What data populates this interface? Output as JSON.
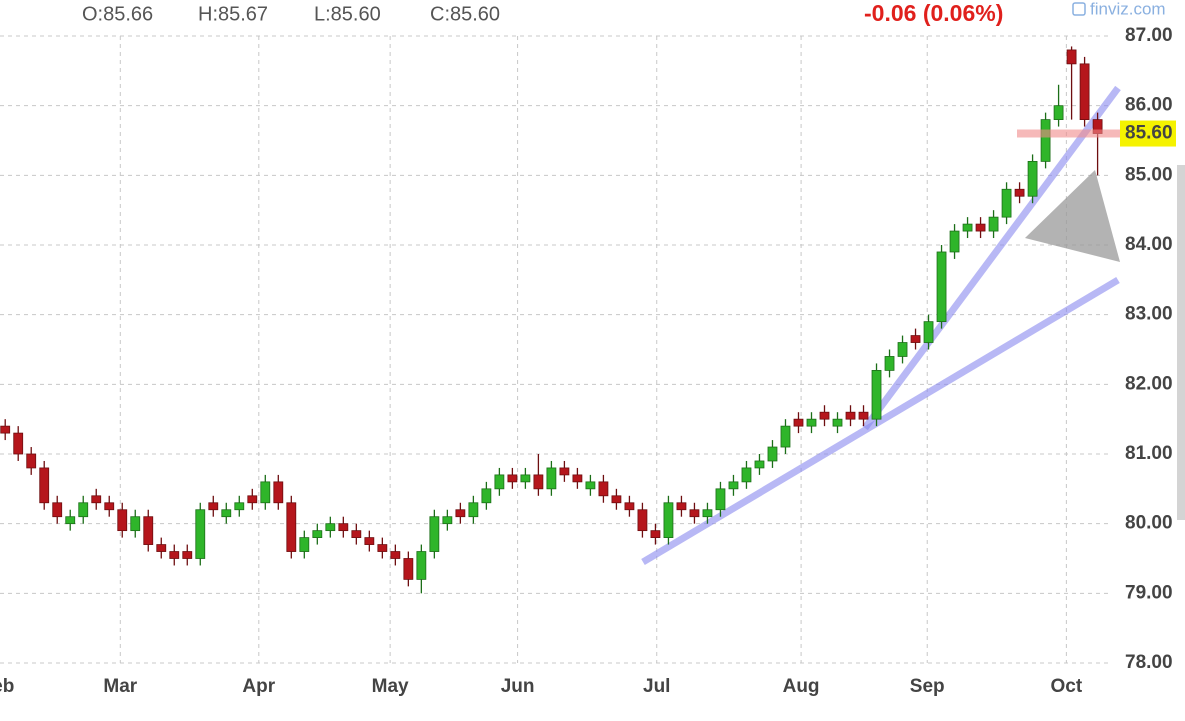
{
  "header": {
    "ohlc": [
      "O:85.66",
      "H:85.67",
      "L:85.60",
      "C:85.60"
    ],
    "change": "-0.06 (0.06%)",
    "brand": "finviz.com"
  },
  "chart_data": {
    "type": "candlestick",
    "open": [
      81.4,
      81.3,
      81.0,
      80.8,
      80.3,
      80.0,
      80.1,
      80.4,
      80.3,
      80.2,
      79.9,
      80.1,
      79.7,
      79.6,
      79.6,
      79.5,
      80.3,
      80.1,
      80.2,
      80.4,
      80.3,
      80.6,
      80.3,
      79.6,
      79.8,
      79.9,
      80.0,
      79.9,
      79.8,
      79.7,
      79.6,
      79.5,
      79.2,
      79.6,
      80.0,
      80.2,
      80.1,
      80.3,
      80.5,
      80.7,
      80.6,
      80.7,
      80.5,
      80.8,
      80.7,
      80.5,
      80.6,
      80.4,
      80.3,
      80.2,
      79.9,
      79.8,
      80.3,
      80.2,
      80.1,
      80.2,
      80.5,
      80.6,
      80.8,
      80.9,
      81.1,
      81.5,
      81.4,
      81.6,
      81.4,
      81.6,
      81.6,
      81.5,
      82.2,
      82.4,
      82.7,
      82.6,
      82.9,
      83.9,
      84.2,
      84.3,
      84.2,
      84.4,
      84.8,
      84.7,
      85.2,
      85.8,
      86.8,
      86.6,
      85.8
    ],
    "high": [
      81.5,
      81.4,
      81.1,
      80.9,
      80.4,
      80.2,
      80.4,
      80.5,
      80.4,
      80.3,
      80.2,
      80.2,
      79.8,
      79.7,
      79.7,
      80.3,
      80.4,
      80.3,
      80.4,
      80.5,
      80.7,
      80.7,
      80.4,
      79.9,
      80.0,
      80.1,
      80.1,
      80.0,
      79.9,
      79.8,
      79.7,
      79.6,
      79.7,
      80.2,
      80.2,
      80.3,
      80.4,
      80.6,
      80.8,
      80.8,
      80.8,
      81.0,
      80.9,
      80.9,
      80.8,
      80.7,
      80.7,
      80.5,
      80.4,
      80.3,
      80.0,
      80.4,
      80.4,
      80.3,
      80.3,
      80.6,
      80.7,
      80.9,
      81.0,
      81.2,
      81.5,
      81.6,
      81.6,
      81.7,
      81.6,
      81.7,
      81.7,
      82.3,
      82.5,
      82.7,
      82.8,
      83.0,
      84.0,
      84.3,
      84.4,
      84.4,
      84.5,
      84.9,
      84.9,
      85.3,
      85.9,
      86.3,
      86.85,
      86.7,
      85.9
    ],
    "low": [
      81.2,
      80.9,
      80.7,
      80.2,
      80.0,
      79.9,
      80.0,
      80.2,
      80.1,
      79.8,
      79.8,
      79.6,
      79.5,
      79.4,
      79.4,
      79.4,
      80.1,
      80.0,
      80.1,
      80.2,
      80.2,
      80.2,
      79.5,
      79.5,
      79.7,
      79.8,
      79.8,
      79.7,
      79.6,
      79.5,
      79.4,
      79.1,
      79.0,
      79.5,
      79.9,
      80.0,
      80.0,
      80.2,
      80.4,
      80.5,
      80.5,
      80.4,
      80.4,
      80.6,
      80.5,
      80.4,
      80.3,
      80.2,
      80.1,
      79.8,
      79.7,
      79.7,
      80.1,
      80.0,
      80.0,
      80.1,
      80.4,
      80.5,
      80.7,
      80.8,
      81.0,
      81.3,
      81.3,
      81.4,
      81.3,
      81.4,
      81.4,
      81.4,
      82.1,
      82.3,
      82.5,
      82.5,
      82.8,
      83.8,
      84.1,
      84.1,
      84.1,
      84.3,
      84.6,
      84.6,
      85.1,
      85.7,
      85.8,
      85.7,
      85.0
    ],
    "close": [
      81.3,
      81.0,
      80.8,
      80.3,
      80.1,
      80.1,
      80.3,
      80.3,
      80.2,
      79.9,
      80.1,
      79.7,
      79.6,
      79.5,
      79.5,
      80.2,
      80.2,
      80.2,
      80.3,
      80.3,
      80.6,
      80.3,
      79.6,
      79.8,
      79.9,
      80.0,
      79.9,
      79.8,
      79.7,
      79.6,
      79.5,
      79.2,
      79.6,
      80.1,
      80.1,
      80.1,
      80.3,
      80.5,
      80.7,
      80.6,
      80.7,
      80.5,
      80.8,
      80.7,
      80.6,
      80.6,
      80.4,
      80.3,
      80.2,
      79.9,
      79.8,
      80.3,
      80.2,
      80.1,
      80.2,
      80.5,
      80.6,
      80.8,
      80.9,
      81.1,
      81.4,
      81.4,
      81.5,
      81.5,
      81.5,
      81.5,
      81.5,
      82.2,
      82.4,
      82.6,
      82.6,
      82.9,
      83.9,
      84.2,
      84.3,
      84.2,
      84.4,
      84.8,
      84.7,
      85.2,
      85.8,
      86.0,
      86.6,
      85.8,
      85.6
    ],
    "up_color": "#2fb52a",
    "down_color": "#b5161c",
    "last_price": {
      "value": 85.6,
      "label": "85.60"
    },
    "xlim": [
      -0.4,
      84.8
    ],
    "xticks": [
      {
        "value": -0.6,
        "label": "Feb"
      },
      {
        "value": 8.85,
        "label": "Mar"
      },
      {
        "value": 19.5,
        "label": "Apr"
      },
      {
        "value": 29.6,
        "label": "May"
      },
      {
        "value": 39.4,
        "label": "Jun"
      },
      {
        "value": 50.1,
        "label": "Jul"
      },
      {
        "value": 61.2,
        "label": "Aug"
      },
      {
        "value": 70.9,
        "label": "Sep"
      },
      {
        "value": 81.6,
        "label": "Oct"
      }
    ],
    "ylim": [
      78,
      87
    ],
    "yticks": [
      {
        "value": 78,
        "label": "78.00"
      },
      {
        "value": 79,
        "label": "79.00"
      },
      {
        "value": 80,
        "label": "80.00"
      },
      {
        "value": 81,
        "label": "81.00"
      },
      {
        "value": 82,
        "label": "82.00"
      },
      {
        "value": 83,
        "label": "83.00"
      },
      {
        "value": 84,
        "label": "84.00"
      },
      {
        "value": 85,
        "label": "85.00"
      },
      {
        "value": 86,
        "label": "86.00"
      },
      {
        "value": 87,
        "label": "87.00"
      }
    ],
    "grid": true
  }
}
